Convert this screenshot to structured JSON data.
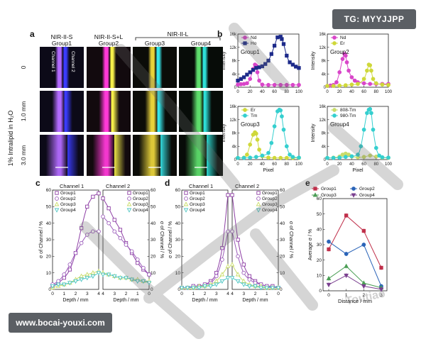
{
  "watermark": {
    "tg": "TG: MYYJJPP",
    "site": "www.bocai-youxi.com",
    "logo_text": "Toutiao"
  },
  "colors": {
    "nd": "#d946c9",
    "ho": "#1d2a8a",
    "er": "#cfd83a",
    "tm": "#35cfcf",
    "g1": "#8e3fa5",
    "g2": "#9c5dbb",
    "g3": "#c9dc6a",
    "g4": "#4fc6c4",
    "e_g1": "#c0304b",
    "e_g2": "#2b64b8",
    "e_g3": "#4b9e55",
    "e_g4": "#7a3f8f"
  },
  "panel_a": {
    "letter": "a",
    "headers": [
      "NIR-II-S",
      "NIR-II-S+L",
      "Group3",
      "Group4"
    ],
    "subheaders": [
      "Group1",
      "Group2"
    ],
    "nir_l": "NIR-II-L",
    "channel1": "Channel 1",
    "channel2": "Channel 2",
    "row_labels": [
      "0",
      "1.0 mm",
      "3.0 mm"
    ],
    "y_title": "1% Intralipid in H₂O"
  },
  "panel_b": {
    "letter": "b",
    "subplots": [
      {
        "group": "Group1",
        "legend": [
          "Nd",
          "Ho"
        ],
        "ymax_label": "16k",
        "yticks": [
          "0",
          "4k",
          "8k",
          "12k",
          "16k"
        ],
        "ylabel": "Intensity",
        "show_xlabel": false
      },
      {
        "group": "Group2",
        "legend": [
          "Nd",
          "Er"
        ],
        "ymax_label": "16k",
        "yticks": [
          "0",
          "4k",
          "8k",
          "12k",
          "16k"
        ],
        "ylabel": "Intensity",
        "show_xlabel": false
      },
      {
        "group": "Group3",
        "legend": [
          "Er",
          "Tm"
        ],
        "ymax_label": "16k",
        "yticks": [
          "0",
          "4k",
          "8k",
          "12k",
          "16k"
        ],
        "ylabel": "Intensity",
        "show_xlabel": true
      },
      {
        "group": "Group4",
        "legend": [
          "808-Tm",
          "980-Tm"
        ],
        "ymax_label": "16k",
        "yticks": [
          "0",
          "4k",
          "8k",
          "12k",
          "16k"
        ],
        "ylabel": "Intensity",
        "show_xlabel": true
      }
    ],
    "xticks": [
      "0",
      "20",
      "40",
      "60",
      "80",
      "100"
    ],
    "xlabel": "Pixel"
  },
  "panel_c": {
    "letter": "c",
    "ch1": "Channel 1",
    "ch2": "Channel 2",
    "legend": [
      "Group1",
      "Group2",
      "Group3",
      "Group4"
    ],
    "ylabel": "σ of Channel / %",
    "xlabel": "Depth / mm",
    "xticks_left": [
      "0",
      "1",
      "2",
      "3",
      "4"
    ],
    "xticks_right": [
      "4",
      "3",
      "2",
      "1",
      "0"
    ],
    "yticks": [
      "0",
      "10",
      "20",
      "30",
      "40",
      "50",
      "60"
    ]
  },
  "panel_d": {
    "letter": "d",
    "ch1": "Channel 1",
    "ch2": "Channel 2",
    "legend": [
      "Group1",
      "Group2",
      "Group3",
      "Group4"
    ],
    "ylabel": "σ of Channel / %",
    "xlabel": "Depth / mm",
    "xticks_left": [
      "0",
      "1",
      "2",
      "3",
      "4"
    ],
    "xticks_right": [
      "4",
      "3",
      "2",
      "1",
      "0"
    ],
    "yticks": [
      "0",
      "10",
      "20",
      "30",
      "40",
      "50",
      "60"
    ]
  },
  "panel_e": {
    "letter": "e",
    "legend": [
      "Group1",
      "Group2",
      "Group3",
      "Group4"
    ],
    "ylabel": "Average σ / %",
    "xlabel": "Distance / mm",
    "xticks": [
      "0",
      "1",
      "2",
      "3"
    ],
    "yticks": [
      "0",
      "10",
      "20",
      "30",
      "40",
      "50",
      "60"
    ]
  },
  "chart_data": [
    {
      "type": "line",
      "panel": "b-Group1",
      "xlabel": "Pixel",
      "ylabel": "Intensity",
      "xlim": [
        0,
        100
      ],
      "ylim": [
        0,
        16000
      ],
      "series": [
        {
          "name": "Nd",
          "x": [
            0,
            5,
            10,
            15,
            20,
            25,
            28,
            30,
            32,
            35,
            40,
            50,
            60,
            70,
            80,
            90,
            100
          ],
          "values": [
            800,
            900,
            1000,
            1200,
            2500,
            5500,
            6800,
            6500,
            4500,
            2000,
            800,
            700,
            700,
            700,
            700,
            700,
            700
          ]
        },
        {
          "name": "Ho",
          "x": [
            0,
            5,
            10,
            15,
            20,
            25,
            30,
            35,
            40,
            45,
            50,
            55,
            60,
            65,
            70,
            72,
            75,
            80,
            85,
            90,
            95,
            100
          ],
          "values": [
            2000,
            2500,
            3000,
            3800,
            4500,
            5200,
            5800,
            6000,
            6300,
            7000,
            8000,
            10000,
            12500,
            15000,
            15200,
            14500,
            13000,
            9500,
            7500,
            6800,
            6200,
            5800
          ]
        }
      ]
    },
    {
      "type": "line",
      "panel": "b-Group2",
      "xlabel": "Pixel",
      "ylabel": "Intensity",
      "xlim": [
        0,
        100
      ],
      "ylim": [
        0,
        16000
      ],
      "series": [
        {
          "name": "Nd",
          "x": [
            0,
            5,
            10,
            15,
            20,
            25,
            28,
            30,
            32,
            35,
            40,
            45,
            50,
            60,
            70,
            80,
            90,
            100
          ],
          "values": [
            400,
            500,
            700,
            1500,
            4500,
            8500,
            10000,
            9500,
            7500,
            5000,
            3000,
            2000,
            1500,
            1200,
            1000,
            1000,
            1000,
            1000
          ]
        },
        {
          "name": "Er",
          "x": [
            0,
            10,
            20,
            30,
            40,
            50,
            60,
            65,
            68,
            70,
            72,
            75,
            80,
            90,
            100
          ],
          "values": [
            400,
            400,
            500,
            600,
            800,
            1000,
            2500,
            5000,
            6800,
            6600,
            5000,
            2500,
            1200,
            800,
            700
          ]
        }
      ]
    },
    {
      "type": "line",
      "panel": "b-Group3",
      "xlabel": "Pixel",
      "ylabel": "Intensity",
      "xlim": [
        0,
        100
      ],
      "ylim": [
        0,
        16000
      ],
      "series": [
        {
          "name": "Er",
          "x": [
            0,
            10,
            15,
            20,
            25,
            28,
            30,
            32,
            35,
            40,
            50,
            60,
            70,
            80,
            90,
            100
          ],
          "values": [
            500,
            600,
            1500,
            4500,
            7500,
            8200,
            7800,
            6000,
            3000,
            1000,
            600,
            500,
            500,
            500,
            500,
            500
          ]
        },
        {
          "name": "Tm",
          "x": [
            0,
            10,
            20,
            30,
            40,
            50,
            55,
            60,
            65,
            68,
            70,
            72,
            75,
            80,
            85,
            90,
            100
          ],
          "values": [
            500,
            500,
            600,
            800,
            1200,
            2000,
            5000,
            10000,
            14500,
            15000,
            14800,
            13000,
            9000,
            4000,
            1500,
            800,
            600
          ]
        }
      ]
    },
    {
      "type": "line",
      "panel": "b-Group4",
      "xlabel": "Pixel",
      "ylabel": "Intensity",
      "xlim": [
        0,
        100
      ],
      "ylim": [
        0,
        16000
      ],
      "series": [
        {
          "name": "808-Tm",
          "x": [
            0,
            10,
            20,
            25,
            30,
            35,
            40,
            50,
            60,
            70,
            80,
            90,
            100
          ],
          "values": [
            500,
            600,
            900,
            1500,
            1800,
            1500,
            900,
            700,
            800,
            1200,
            900,
            600,
            500
          ]
        },
        {
          "name": "980-Tm",
          "x": [
            0,
            10,
            20,
            30,
            40,
            50,
            55,
            60,
            65,
            68,
            70,
            72,
            75,
            80,
            85,
            90,
            100
          ],
          "values": [
            500,
            500,
            600,
            800,
            1000,
            1500,
            4000,
            9000,
            14000,
            15000,
            15200,
            14000,
            9000,
            3500,
            1200,
            700,
            600
          ]
        }
      ]
    },
    {
      "type": "scatter",
      "panel": "c",
      "xlabel": "Depth / mm",
      "ylabel": "σ of Channel / %",
      "ylim": [
        0,
        60
      ],
      "left_x": [
        0,
        0.5,
        1,
        1.5,
        2,
        2.5,
        3,
        3.5,
        4
      ],
      "right_x": [
        4,
        3.5,
        3,
        2.5,
        2,
        1.5,
        1,
        0.5,
        0
      ],
      "series": [
        {
          "name": "Group1",
          "left": [
            2,
            4,
            7,
            12,
            22,
            37,
            50,
            56,
            58
          ],
          "right": [
            55,
            49,
            42,
            36,
            28,
            22,
            16,
            12,
            9
          ]
        },
        {
          "name": "Group2",
          "left": [
            3,
            5,
            9,
            15,
            22,
            28,
            33,
            35,
            35
          ],
          "right": [
            44,
            40,
            35,
            31,
            27,
            23,
            18,
            13,
            9
          ]
        },
        {
          "name": "Group3",
          "left": [
            1,
            2,
            3,
            4,
            6,
            8,
            9,
            10,
            11
          ],
          "right": [
            10,
            9,
            8,
            7,
            7,
            6,
            6,
            5,
            5
          ]
        },
        {
          "name": "Group4",
          "left": [
            2,
            3,
            3,
            4,
            5,
            6,
            7,
            8,
            10
          ],
          "right": [
            9,
            9,
            8,
            7,
            7,
            6,
            5,
            5,
            4
          ]
        }
      ]
    },
    {
      "type": "scatter",
      "panel": "d",
      "xlabel": "Depth / mm",
      "ylabel": "σ of Channel / %",
      "ylim": [
        0,
        60
      ],
      "left_x": [
        0,
        0.5,
        1,
        1.5,
        2,
        2.5,
        3,
        3.5,
        4
      ],
      "right_x": [
        4,
        3.5,
        3,
        2.5,
        2,
        1.5,
        1,
        0.5,
        0
      ],
      "series": [
        {
          "name": "Group1",
          "left": [
            1,
            1,
            2,
            2,
            3,
            5,
            10,
            25,
            57
          ],
          "right": [
            57,
            30,
            15,
            8,
            5,
            3,
            2,
            2,
            1
          ]
        },
        {
          "name": "Group2",
          "left": [
            1,
            1,
            2,
            2,
            3,
            4,
            8,
            18,
            35
          ],
          "right": [
            35,
            20,
            10,
            6,
            4,
            3,
            2,
            1,
            1
          ]
        },
        {
          "name": "Group3",
          "left": [
            1,
            1,
            1,
            2,
            2,
            3,
            5,
            9,
            14
          ],
          "right": [
            15,
            9,
            5,
            3,
            2,
            2,
            1,
            1,
            1
          ]
        },
        {
          "name": "Group4",
          "left": [
            1,
            1,
            1,
            1,
            2,
            2,
            3,
            5,
            7
          ],
          "right": [
            7,
            5,
            3,
            2,
            2,
            1,
            1,
            1,
            1
          ]
        }
      ]
    },
    {
      "type": "line",
      "panel": "e",
      "xlabel": "Distance / mm",
      "ylabel": "Average σ / %",
      "x": [
        0,
        1,
        2,
        3
      ],
      "ylim": [
        0,
        60
      ],
      "series": [
        {
          "name": "Group1",
          "values": [
            27,
            49,
            39,
            15
          ]
        },
        {
          "name": "Group2",
          "values": [
            32,
            24,
            30,
            3
          ]
        },
        {
          "name": "Group3",
          "values": [
            8,
            16,
            5,
            2
          ]
        },
        {
          "name": "Group4",
          "values": [
            4,
            10,
            3,
            1
          ]
        }
      ]
    }
  ]
}
